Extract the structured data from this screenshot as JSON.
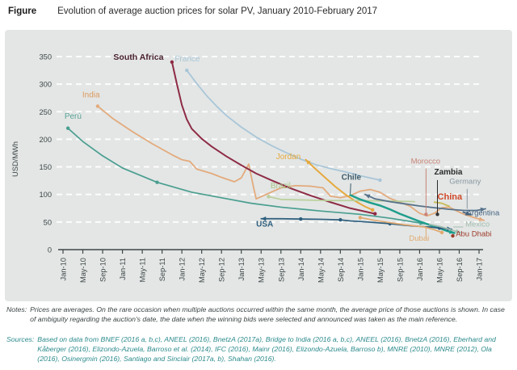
{
  "header": {
    "label": "Figure",
    "title": "Evolution of average auction prices for solar PV, January 2010-February 2017"
  },
  "notes": {
    "prefix": "Notes:",
    "body": "Prices are averages. On the rare occasion when multiple auctions occurred within the same month, the average price of those auctions is shown. In case of ambiguity regarding the auction's date, the date when the winning bids were selected and announced was taken as the main reference."
  },
  "sources": {
    "prefix": "Sources:",
    "body": "Based on data from BNEF (2016 a, b,c), ANEEL (2016), BnetzA (2017a), Bridge to India (2016 a, b,c), ANEEL (2016), BnetzA (2016), Eberhard and Kåberger (2016), Elizondo-Azuela, Barroso et al. (2014), IFC (2016), Mainr (2016), Elizondo-Azuela, Barroso b), MNRE (2010), MNRE (2012), Ola (2016), Osinergmin (2016), Santiago and Sinclair (2017a, b), Shahan (2016)."
  },
  "chart_data": {
    "type": "line",
    "title": "Evolution of average auction prices for solar PV, January 2010-February 2017",
    "xlabel": "",
    "ylabel": "USD/MWh",
    "ylim": [
      0,
      350
    ],
    "y_ticks": [
      0,
      50,
      100,
      150,
      200,
      250,
      300,
      350
    ],
    "x_ticks": [
      "Jan-10",
      "May-10",
      "Sep-10",
      "Jan-11",
      "May-11",
      "Sep-11",
      "Jan-12",
      "May-12",
      "Sep-12",
      "Jan-13",
      "May-13",
      "Sep-13",
      "Jan-14",
      "May-14",
      "Sep-14",
      "Jan-15",
      "May-15",
      "Sep-15",
      "Jan-16",
      "May-16",
      "Sep-16",
      "Jan-17"
    ],
    "x_encoding": "months since Jan-2010 (0 = Jan-10, 4 = May-10, ... 84 = Jan-17)",
    "grid": "horizontal dashed white gridlines on grey panel",
    "legend_position": "in-plot country labels",
    "series": [
      {
        "name": "Peru",
        "color": "#4a9e90",
        "width": 1.7,
        "end_arrow": true,
        "points": [
          [
            1,
            220
          ],
          [
            4,
            196
          ],
          [
            8,
            170
          ],
          [
            12,
            148
          ],
          [
            19,
            122
          ],
          [
            26,
            104
          ],
          [
            32,
            94
          ],
          [
            38,
            84
          ],
          [
            44,
            77
          ],
          [
            52,
            70
          ],
          [
            60,
            64
          ],
          [
            66,
            57
          ],
          [
            73,
            47
          ]
        ],
        "dots": [
          [
            1,
            220
          ],
          [
            19,
            122
          ]
        ]
      },
      {
        "name": "India",
        "color": "#e3aa7c",
        "width": 1.8,
        "end_arrow": true,
        "points": [
          [
            7,
            260
          ],
          [
            10,
            238
          ],
          [
            14,
            214
          ],
          [
            18,
            192
          ],
          [
            22,
            172
          ],
          [
            24,
            163
          ],
          [
            25.6,
            160
          ],
          [
            27,
            146
          ],
          [
            30,
            138
          ],
          [
            32,
            131
          ],
          [
            34.6,
            123
          ],
          [
            36,
            130
          ],
          [
            37.5,
            155
          ],
          [
            38.5,
            112
          ],
          [
            39,
            92
          ],
          [
            40,
            96
          ],
          [
            42,
            104
          ],
          [
            44,
            112
          ],
          [
            47,
            116
          ],
          [
            50,
            115
          ],
          [
            52.5,
            112
          ],
          [
            54,
            97
          ],
          [
            56,
            94
          ],
          [
            58,
            98
          ],
          [
            60,
            106
          ],
          [
            62,
            109
          ],
          [
            64,
            104
          ],
          [
            66,
            93
          ],
          [
            68,
            86
          ],
          [
            70,
            79
          ],
          [
            72,
            66
          ],
          [
            73.5,
            61
          ],
          [
            75,
            66
          ],
          [
            76.5,
            76
          ],
          [
            78,
            77
          ],
          [
            79.5,
            70
          ],
          [
            81,
            64
          ],
          [
            83,
            58
          ],
          [
            85,
            53
          ]
        ],
        "dots": [
          [
            7,
            260
          ]
        ]
      },
      {
        "name": "South Africa",
        "color": "#8e2b45",
        "width": 2,
        "points": [
          [
            22,
            340
          ],
          [
            23,
            300
          ],
          [
            24,
            262
          ],
          [
            25,
            236
          ],
          [
            26,
            219
          ],
          [
            28,
            201
          ],
          [
            30,
            187
          ],
          [
            33,
            169
          ],
          [
            36,
            153
          ],
          [
            39,
            138
          ],
          [
            42,
            126
          ],
          [
            46,
            111
          ],
          [
            50,
            98
          ],
          [
            54,
            86
          ],
          [
            58,
            75
          ],
          [
            61,
            69
          ],
          [
            63,
            65
          ]
        ],
        "dots": [
          [
            22,
            340
          ],
          [
            63,
            65
          ]
        ]
      },
      {
        "name": "France",
        "color": "#a9c6d8",
        "width": 1.8,
        "points": [
          [
            25,
            325
          ],
          [
            27,
            301
          ],
          [
            29,
            279
          ],
          [
            31,
            260
          ],
          [
            33,
            243
          ],
          [
            36,
            222
          ],
          [
            39,
            204
          ],
          [
            42,
            189
          ],
          [
            45,
            176
          ],
          [
            48,
            164
          ],
          [
            51,
            154
          ],
          [
            54,
            147
          ],
          [
            57,
            141
          ],
          [
            60,
            134
          ],
          [
            64,
            126
          ]
        ],
        "dots": [
          [
            25,
            325
          ],
          [
            64,
            126
          ]
        ]
      },
      {
        "name": "Jordan",
        "color": "#e6a93f",
        "width": 2,
        "start_arrow": true,
        "points": [
          [
            49,
            163
          ],
          [
            51,
            146
          ],
          [
            53,
            130
          ],
          [
            55,
            114
          ],
          [
            57,
            100
          ],
          [
            59,
            88
          ],
          [
            61,
            78
          ],
          [
            62.5,
            72
          ]
        ],
        "dots": [
          [
            62.5,
            72
          ]
        ]
      },
      {
        "name": "Brazil",
        "color": "#b9cf9a",
        "width": 1.7,
        "points": [
          [
            41.5,
            96
          ],
          [
            44,
            91
          ],
          [
            48,
            90
          ],
          [
            54,
            89
          ],
          [
            60,
            89
          ],
          [
            66,
            88
          ],
          [
            71,
            87
          ]
        ],
        "dots": [
          [
            41.5,
            96
          ]
        ]
      },
      {
        "name": "Chile",
        "color": "#1f9e8c",
        "width": 2.5,
        "end_arrow": true,
        "points": [
          [
            58,
            99
          ],
          [
            60,
            91
          ],
          [
            62,
            85
          ],
          [
            64,
            80
          ],
          [
            66,
            73
          ],
          [
            68,
            65
          ],
          [
            70,
            58
          ],
          [
            72,
            51
          ],
          [
            74,
            45
          ],
          [
            76,
            39
          ],
          [
            77.5,
            34
          ],
          [
            79,
            30
          ]
        ]
      },
      {
        "name": "USA",
        "color": "#2d5e7d",
        "width": 1.7,
        "start_arrow": true,
        "end_arrow": true,
        "points": [
          [
            40,
            56
          ],
          [
            44,
            56
          ],
          [
            48,
            55.5
          ],
          [
            52,
            55
          ],
          [
            56,
            54
          ],
          [
            58,
            52
          ],
          [
            60,
            51
          ],
          [
            63,
            49
          ],
          [
            66,
            47
          ],
          [
            69,
            44
          ],
          [
            72,
            42
          ],
          [
            74,
            41
          ],
          [
            76,
            39
          ],
          [
            78.5,
            37
          ]
        ],
        "dots": [
          [
            48,
            55.5
          ],
          [
            56,
            54
          ],
          [
            66,
            47
          ],
          [
            76,
            39
          ]
        ]
      },
      {
        "name": "Germany",
        "color": "#56718a",
        "width": 1.8,
        "start_arrow": true,
        "end_arrow": true,
        "points": [
          [
            61,
            100
          ],
          [
            63,
            92
          ],
          [
            66,
            87
          ],
          [
            69,
            83
          ],
          [
            72,
            79
          ],
          [
            75,
            76
          ],
          [
            78,
            73
          ],
          [
            81,
            71
          ],
          [
            83.5,
            71
          ],
          [
            85.3,
            74
          ]
        ]
      },
      {
        "name": "China",
        "color": "#c9bd5e",
        "width": 2,
        "points": [
          [
            75,
            86
          ],
          [
            76.5,
            84
          ],
          [
            78,
            78.5
          ]
        ]
      },
      {
        "name": "Argentina",
        "color": "#44627f",
        "width": 1.7,
        "end_arrow": true,
        "points": [
          [
            80.8,
            68
          ],
          [
            82.3,
            63
          ]
        ]
      },
      {
        "name": "Mexico",
        "color": "#a3bdb0",
        "width": 1.8,
        "end_arrow": true,
        "points": [
          [
            74,
            46
          ],
          [
            76.5,
            41
          ],
          [
            79,
            34
          ],
          [
            80.3,
            31
          ]
        ]
      },
      {
        "name": "Dubai",
        "color": "#e2a96e",
        "width": 1.7,
        "points": [
          [
            60,
            58
          ],
          [
            63,
            53
          ],
          [
            66,
            49
          ],
          [
            69,
            45
          ],
          [
            71,
            43
          ],
          [
            73,
            41
          ],
          [
            75,
            36
          ],
          [
            76.5,
            31
          ]
        ],
        "dots": [
          [
            60,
            58
          ],
          [
            76.5,
            31
          ]
        ]
      },
      {
        "name": "Morocco",
        "color": "#c98477",
        "width": 1.5,
        "points": [
          [
            73.3,
            64
          ]
        ],
        "dots": [
          [
            73.3,
            64
          ]
        ]
      },
      {
        "name": "Zambia",
        "color": "#333333",
        "width": 1.5,
        "points": [
          [
            75.6,
            64
          ]
        ],
        "dots": [
          [
            75.6,
            64
          ]
        ]
      },
      {
        "name": "Abu Dhabi",
        "color": "#9e3a2a",
        "width": 1.5,
        "points": [
          [
            78.7,
            25
          ]
        ],
        "dots": [
          [
            78.7,
            25
          ]
        ]
      }
    ],
    "labels": [
      {
        "text": "Perú",
        "x": 0.3,
        "y": 237,
        "anchor": "start",
        "color": "#5aa396",
        "size": 10
      },
      {
        "text": "India",
        "x": 3.9,
        "y": 276,
        "anchor": "start",
        "color": "#dd9a5f",
        "size": 10
      },
      {
        "text": "South Africa",
        "x": 20.3,
        "y": 344,
        "anchor": "end",
        "color": "#4a2130",
        "size": 10.5,
        "weight": 600
      },
      {
        "text": "France",
        "x": 25.1,
        "y": 341,
        "anchor": "middle",
        "color": "#a9c6d8",
        "size": 10
      },
      {
        "text": "Jordan",
        "x": 48,
        "y": 164,
        "anchor": "end",
        "color": "#e6a93f",
        "size": 10
      },
      {
        "text": "Brazil",
        "x": 41.9,
        "y": 111,
        "anchor": "start",
        "color": "#a8c486",
        "size": 10
      },
      {
        "text": "Chile",
        "x": 58.2,
        "y": 127,
        "anchor": "middle",
        "color": "#3d5a6b",
        "size": 10,
        "weight": 600,
        "leader": [
          58.1,
          120,
          58,
          101
        ]
      },
      {
        "text": "USA",
        "x": 39,
        "y": 42,
        "anchor": "start",
        "color": "#2d5e7d",
        "size": 10,
        "weight": 600
      },
      {
        "text": "Morocco",
        "x": 73.2,
        "y": 156,
        "anchor": "middle",
        "color": "#c98477",
        "size": 9.5,
        "leader": [
          73.3,
          147,
          73.3,
          66
        ]
      },
      {
        "text": "Zambia",
        "x": 77.8,
        "y": 136,
        "anchor": "middle",
        "color": "#2b2b2b",
        "size": 10,
        "weight": 600,
        "leader": [
          75.6,
          126,
          75.6,
          66
        ]
      },
      {
        "text": "Germany",
        "x": 81.2,
        "y": 119,
        "anchor": "middle",
        "color": "#8a97a0",
        "size": 9.5,
        "leader": [
          81.6,
          110,
          81.6,
          74
        ]
      },
      {
        "text": "China",
        "x": 78.1,
        "y": 91,
        "anchor": "middle",
        "color": "#d14a2b",
        "size": 11,
        "weight": 700
      },
      {
        "text": "Argentina",
        "x": 84.8,
        "y": 62,
        "anchor": "middle",
        "color": "#44627f",
        "size": 9.5,
        "leader": [
          81.2,
          63,
          82.6,
          63
        ]
      },
      {
        "text": "Mexico",
        "x": 83.7,
        "y": 42,
        "anchor": "middle",
        "color": "#a3bdb0",
        "size": 9.5,
        "leader": [
          78.8,
          41,
          80.8,
          41
        ]
      },
      {
        "text": "Abu Dhabi",
        "x": 79.3,
        "y": 24,
        "anchor": "start",
        "color": "#9e3a2a",
        "size": 9.5
      },
      {
        "text": "Dubai",
        "x": 71.9,
        "y": 16,
        "anchor": "middle",
        "color": "#e2a96e",
        "size": 9.5,
        "leader": [
          73.3,
          40,
          73.3,
          22
        ]
      }
    ]
  }
}
